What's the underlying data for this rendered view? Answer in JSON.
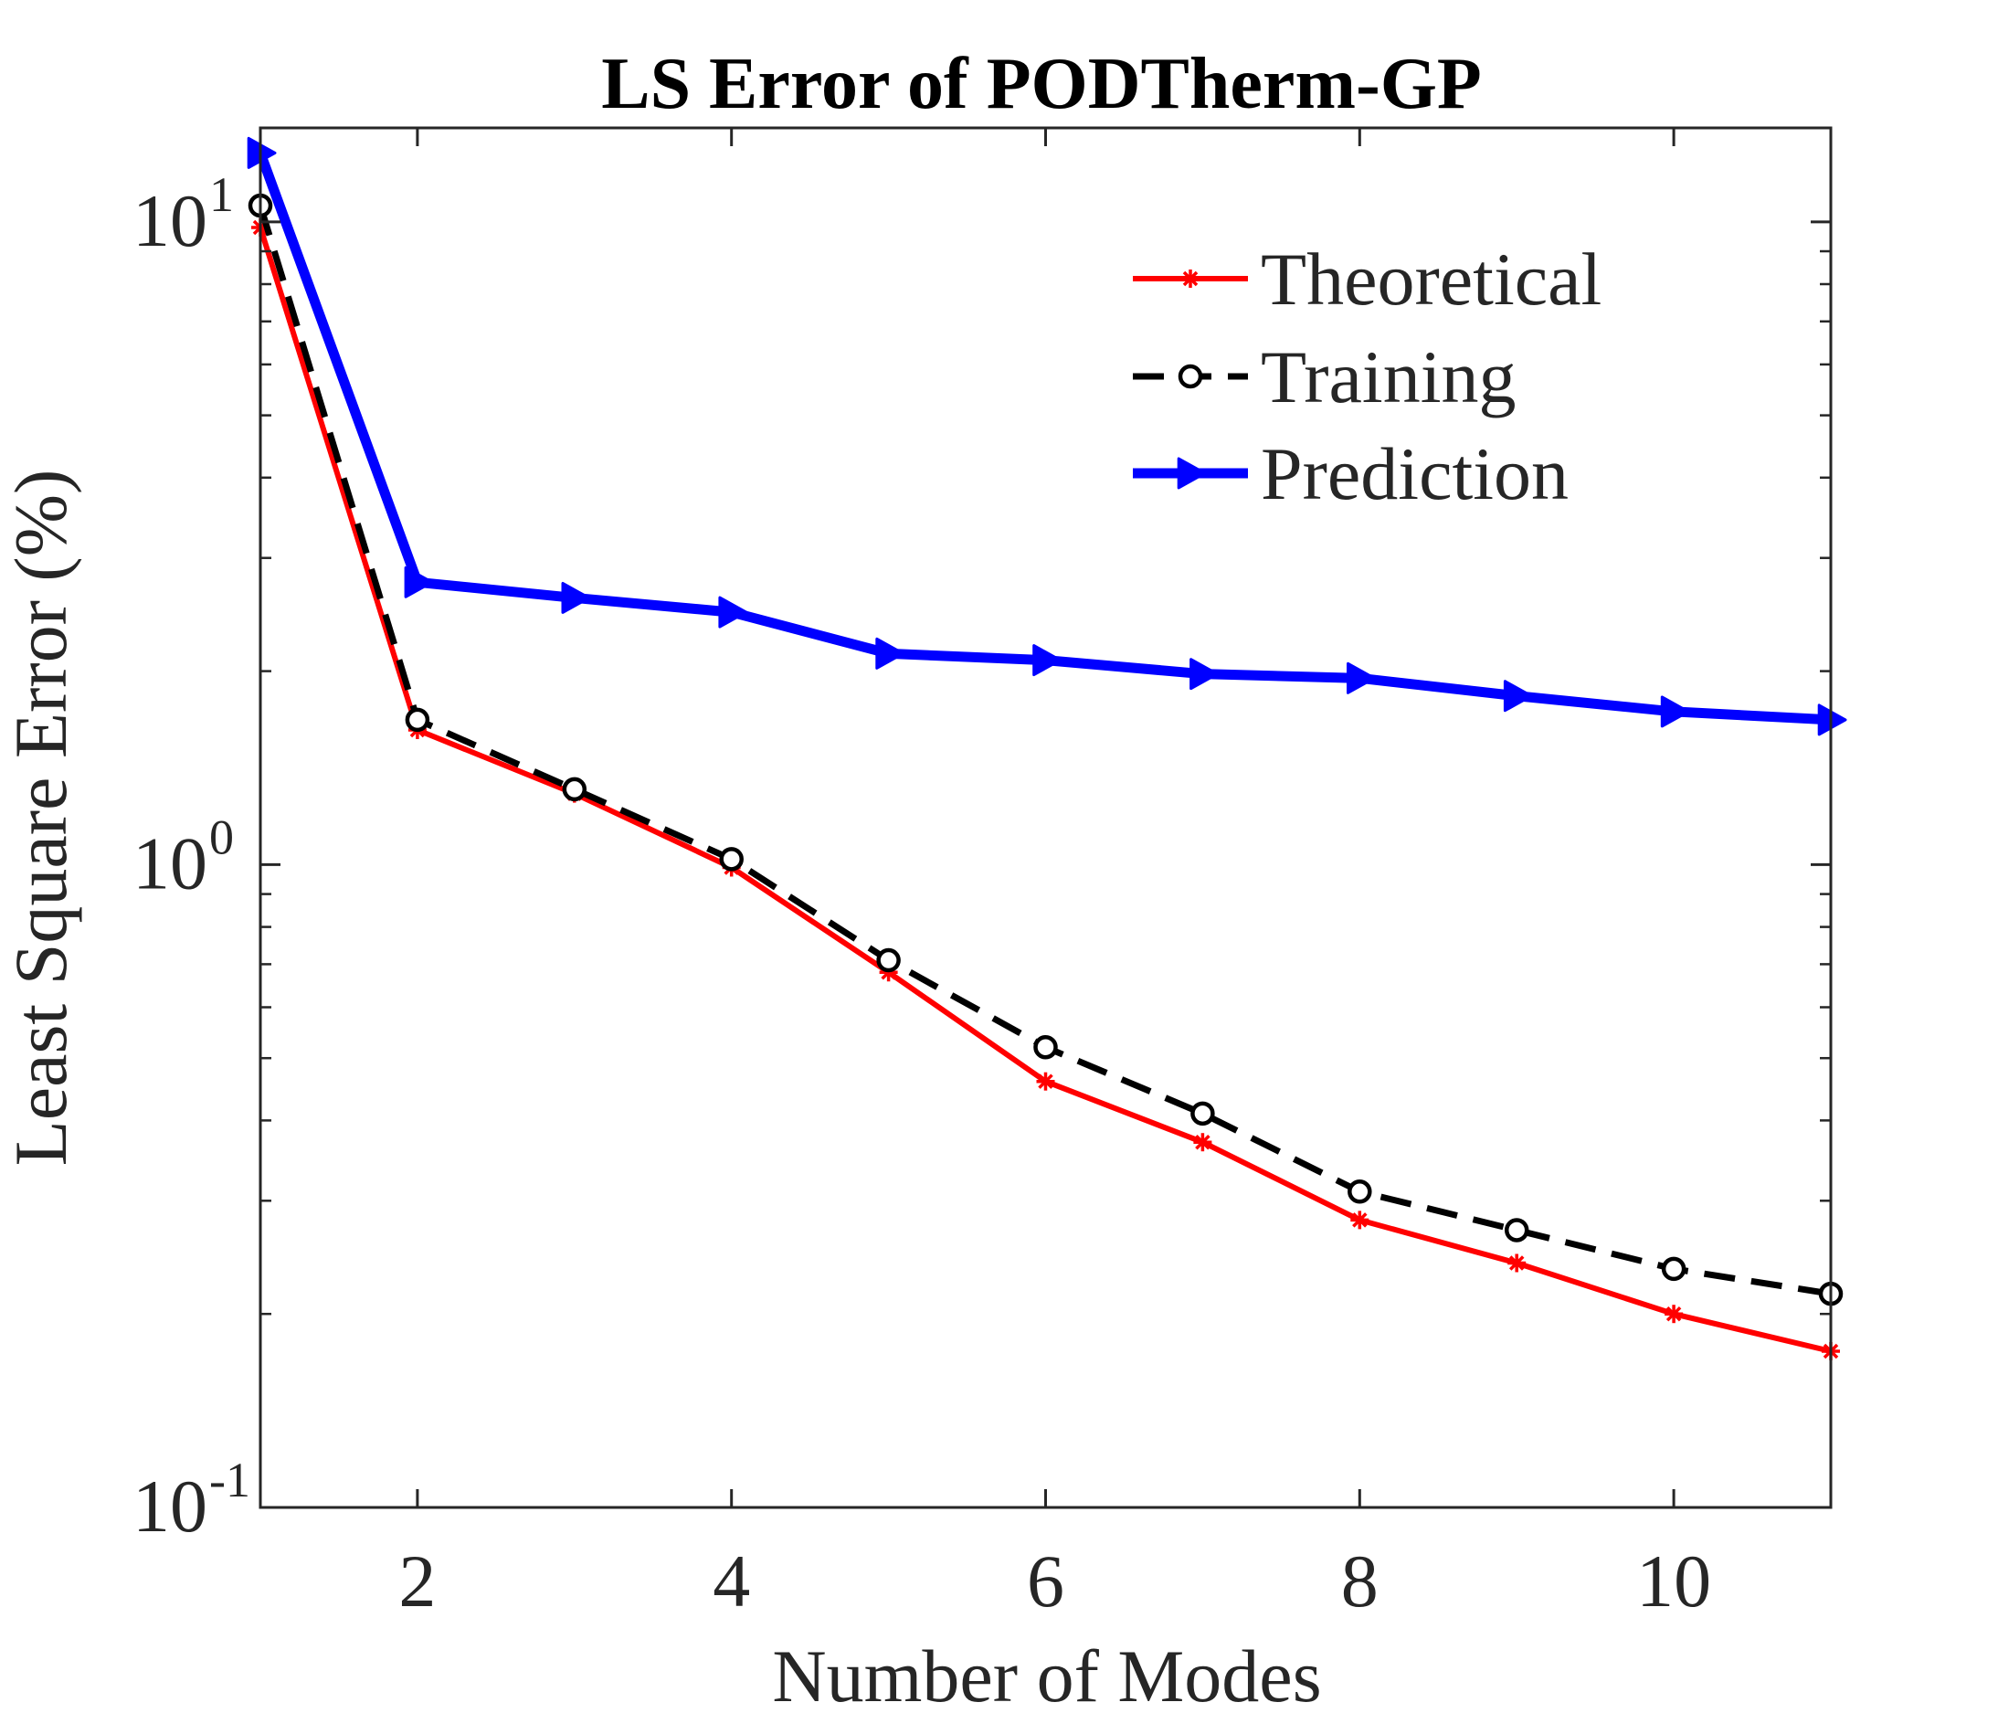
{
  "chart_data": {
    "type": "line",
    "title": "LS Error of PODTherm-GP",
    "xlabel": "Number of Modes",
    "ylabel": "Least Square Error (%)",
    "xlim": [
      1,
      11
    ],
    "ylim": [
      0.1,
      14
    ],
    "yscale": "log",
    "grid": false,
    "legend_position": "top-right",
    "x_ticks": [
      2,
      4,
      6,
      8,
      10
    ],
    "y_ticks": [
      {
        "value": 0.1,
        "base": "10",
        "exp": "-1"
      },
      {
        "value": 1,
        "base": "10",
        "exp": "0"
      },
      {
        "value": 10,
        "base": "10",
        "exp": "1"
      }
    ],
    "x": [
      1,
      2,
      3,
      4,
      5,
      6,
      7,
      8,
      9,
      10,
      11
    ],
    "series": [
      {
        "name": "Theoretical",
        "color": "#ff0000",
        "marker": "asterisk",
        "line": "solid",
        "values": [
          9.8,
          1.62,
          1.29,
          0.99,
          0.68,
          0.46,
          0.37,
          0.28,
          0.24,
          0.2,
          0.175
        ]
      },
      {
        "name": "Training",
        "color": "#000000",
        "marker": "circle",
        "line": "dashed",
        "values": [
          10.6,
          1.68,
          1.31,
          1.02,
          0.71,
          0.52,
          0.41,
          0.31,
          0.27,
          0.235,
          0.215
        ]
      },
      {
        "name": "Prediction",
        "color": "#0000ff",
        "marker": "triangle-right",
        "line": "solid-thick",
        "values": [
          12.8,
          2.75,
          2.6,
          2.47,
          2.13,
          2.08,
          1.98,
          1.95,
          1.83,
          1.73,
          1.68
        ]
      }
    ]
  }
}
